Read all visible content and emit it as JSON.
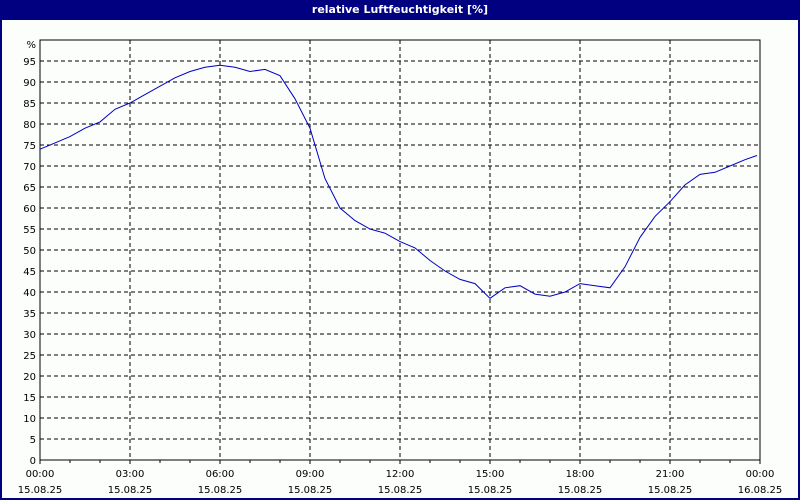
{
  "title": "relative Luftfeuchtigkeit [%]",
  "colors": {
    "frame": "#000080",
    "line": "#0000c0",
    "grid": "#000000",
    "background": "#fcfefc"
  },
  "chart_data": {
    "type": "line",
    "title": "relative Luftfeuchtigkeit [%]",
    "xlabel": "",
    "ylabel": "%",
    "ylim": [
      0,
      100
    ],
    "xlim_hours": [
      0,
      24
    ],
    "grid": true,
    "legend": null,
    "y_ticks": [
      0,
      5,
      10,
      15,
      20,
      25,
      30,
      35,
      40,
      45,
      50,
      55,
      60,
      65,
      70,
      75,
      80,
      85,
      90,
      95
    ],
    "x_ticks": [
      {
        "time": "00:00",
        "date": "15.08.25"
      },
      {
        "time": "03:00",
        "date": "15.08.25"
      },
      {
        "time": "06:00",
        "date": "15.08.25"
      },
      {
        "time": "09:00",
        "date": "15.08.25"
      },
      {
        "time": "12:00",
        "date": "15.08.25"
      },
      {
        "time": "15:00",
        "date": "15.08.25"
      },
      {
        "time": "18:00",
        "date": "15.08.25"
      },
      {
        "time": "21:00",
        "date": "15.08.25"
      },
      {
        "time": "00:00",
        "date": "16.08.25"
      }
    ],
    "series": [
      {
        "name": "relative Luftfeuchtigkeit",
        "x_hours": [
          0,
          0.5,
          1,
          1.5,
          2,
          2.5,
          3,
          3.5,
          4,
          4.5,
          5,
          5.5,
          6,
          6.5,
          7,
          7.5,
          8,
          8.5,
          9,
          9.5,
          10,
          10.5,
          11,
          11.5,
          12,
          12.5,
          13,
          13.5,
          14,
          14.5,
          15,
          15.5,
          16,
          16.5,
          17,
          17.5,
          18,
          18.5,
          19,
          19.5,
          20,
          20.5,
          21,
          21.5,
          22,
          22.5,
          23,
          23.5,
          23.9
        ],
        "values": [
          74,
          75.5,
          77,
          79,
          80.5,
          83.5,
          85,
          87,
          89,
          91,
          92.5,
          93.5,
          94,
          93.5,
          92.5,
          93,
          91.5,
          86,
          79,
          67,
          60,
          57,
          55,
          54,
          52,
          50.5,
          47.5,
          45,
          43,
          42,
          38.5,
          41,
          41.5,
          39.5,
          39,
          40,
          42,
          41.5,
          41,
          46,
          53,
          58,
          61.5,
          65.5,
          68,
          68.5,
          70,
          71.5,
          72.5
        ]
      }
    ]
  }
}
